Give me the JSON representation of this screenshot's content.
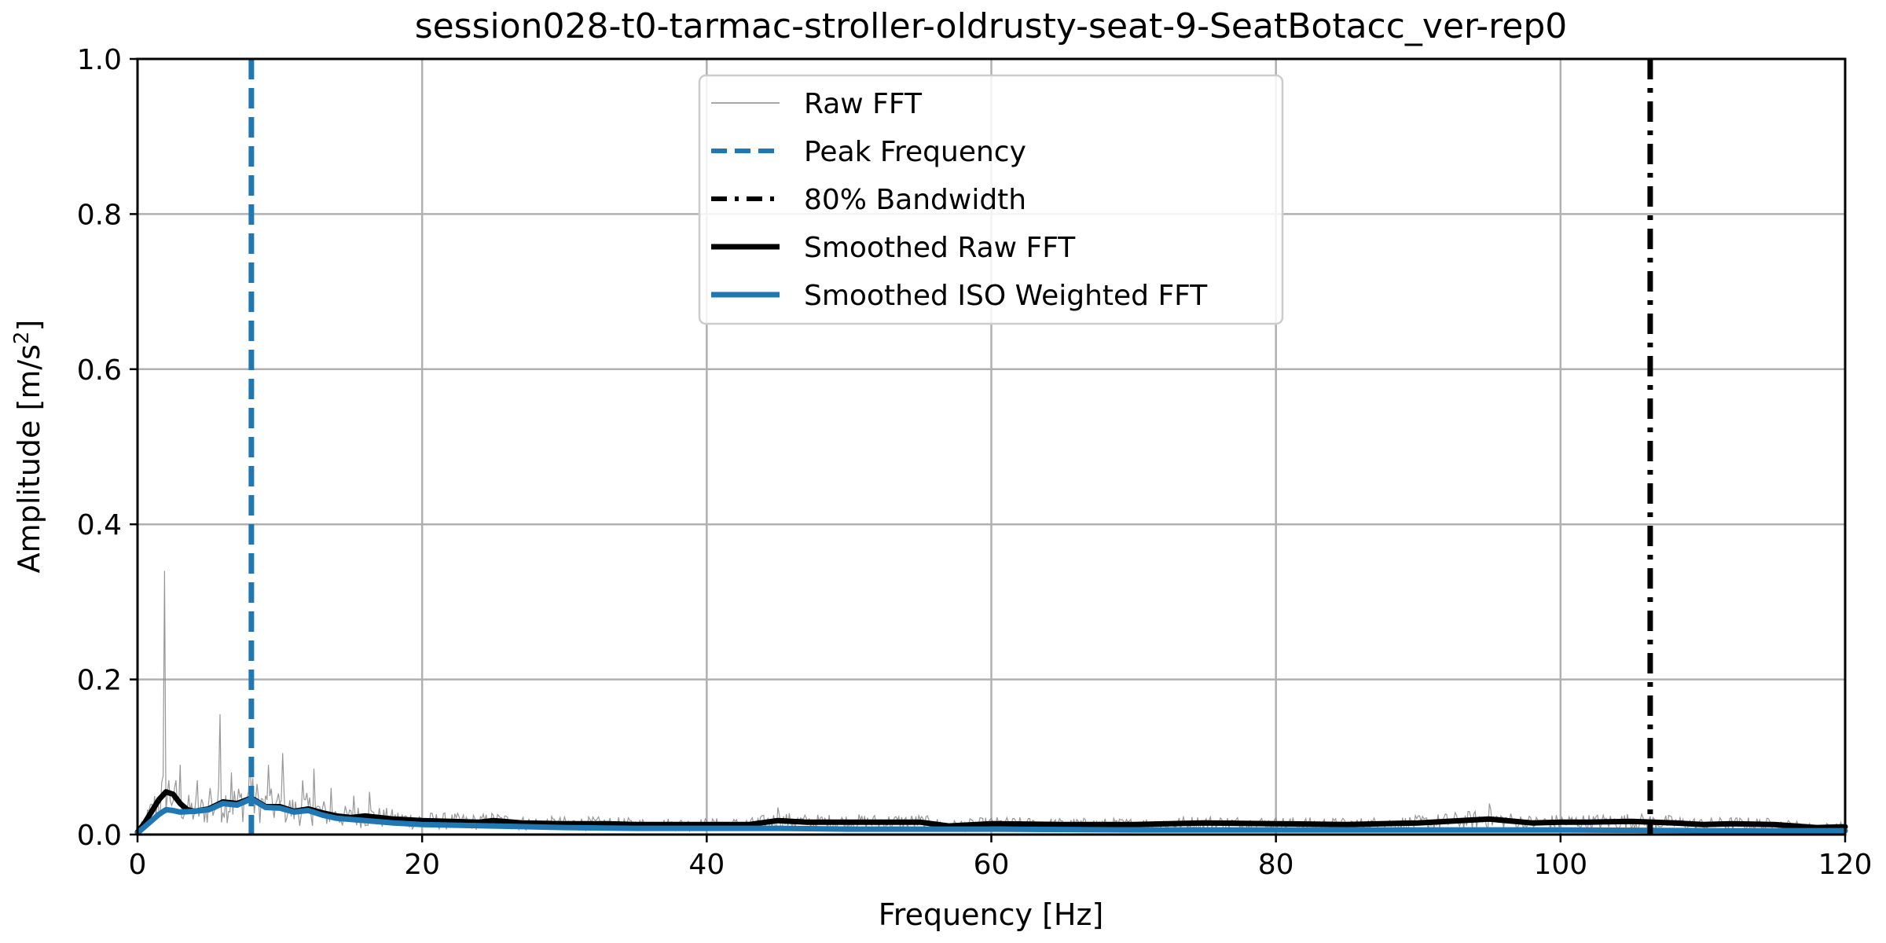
{
  "chart_data": {
    "type": "line",
    "title": "session028-t0-tarmac-stroller-oldrusty-seat-9-SeatBotacc_ver-rep0",
    "xlabel": "Frequency [Hz]",
    "ylabel_main": "Amplitude [m/s",
    "ylabel_sup": "2",
    "ylabel_end": "]",
    "xlim": [
      0,
      120
    ],
    "ylim": [
      0,
      1.0
    ],
    "x_ticks": [
      0,
      20,
      40,
      60,
      80,
      100,
      120
    ],
    "x_tick_labels": [
      "0",
      "20",
      "40",
      "60",
      "80",
      "100",
      "120"
    ],
    "y_ticks": [
      0,
      0.2,
      0.4,
      0.6,
      0.8,
      1.0
    ],
    "y_tick_labels": [
      "0.0",
      "0.2",
      "0.4",
      "0.6",
      "0.8",
      "1.0"
    ],
    "grid": true,
    "legend_position": "top-center",
    "peak_frequency": 8.0,
    "bandwidth_80": 106.3,
    "raw_spikes": [
      {
        "x": 1.9,
        "y": 0.34
      },
      {
        "x": 2.6,
        "y": 0.06
      },
      {
        "x": 3.0,
        "y": 0.09
      },
      {
        "x": 4.2,
        "y": 0.07
      },
      {
        "x": 5.1,
        "y": 0.06
      },
      {
        "x": 5.8,
        "y": 0.155
      },
      {
        "x": 6.6,
        "y": 0.08
      },
      {
        "x": 7.9,
        "y": 0.1
      },
      {
        "x": 9.2,
        "y": 0.09
      },
      {
        "x": 10.2,
        "y": 0.105
      },
      {
        "x": 11.6,
        "y": 0.07
      },
      {
        "x": 12.4,
        "y": 0.085
      },
      {
        "x": 13.6,
        "y": 0.06
      },
      {
        "x": 15.2,
        "y": 0.05
      },
      {
        "x": 16.3,
        "y": 0.055
      },
      {
        "x": 45.0,
        "y": 0.035
      },
      {
        "x": 95.0,
        "y": 0.04
      }
    ],
    "series": [
      {
        "name": "Smoothed Raw FFT",
        "x": [
          0,
          0.5,
          1.0,
          1.5,
          2.0,
          2.5,
          3.0,
          3.5,
          4.0,
          5.0,
          6.0,
          7.0,
          8.0,
          9.0,
          10.0,
          11.0,
          12.0,
          13.0,
          14.0,
          15.0,
          16.0,
          17.0,
          18.0,
          20.0,
          22.0,
          24.0,
          25.0,
          27.0,
          30.0,
          33.0,
          35.0,
          40.0,
          43.0,
          45.0,
          47.0,
          50.0,
          55.0,
          57.0,
          60.0,
          65.0,
          70.0,
          75.0,
          80.0,
          85.0,
          90.0,
          95.0,
          98.0,
          100.0,
          102.0,
          105.0,
          108.0,
          110.0,
          112.0,
          115.0,
          118.0,
          120.0
        ],
        "y": [
          0.003,
          0.015,
          0.03,
          0.045,
          0.055,
          0.052,
          0.04,
          0.032,
          0.03,
          0.033,
          0.042,
          0.04,
          0.047,
          0.036,
          0.036,
          0.03,
          0.033,
          0.028,
          0.024,
          0.022,
          0.024,
          0.022,
          0.02,
          0.018,
          0.017,
          0.016,
          0.018,
          0.015,
          0.014,
          0.014,
          0.013,
          0.013,
          0.013,
          0.018,
          0.016,
          0.016,
          0.016,
          0.011,
          0.014,
          0.013,
          0.013,
          0.015,
          0.014,
          0.013,
          0.015,
          0.02,
          0.015,
          0.016,
          0.016,
          0.017,
          0.015,
          0.013,
          0.014,
          0.013,
          0.009,
          0.01
        ]
      },
      {
        "name": "Smoothed ISO Weighted FFT",
        "x": [
          0,
          0.5,
          1.0,
          1.5,
          2.0,
          2.5,
          3.0,
          4.0,
          5.0,
          6.0,
          7.0,
          8.0,
          9.0,
          10.0,
          11.0,
          12.0,
          13.0,
          14.0,
          16.0,
          18.0,
          20.0,
          25.0,
          30.0,
          35.0,
          40.0,
          45.0,
          50.0,
          55.0,
          60.0,
          70.0,
          80.0,
          90.0,
          100.0,
          110.0,
          120.0
        ],
        "y": [
          0.002,
          0.01,
          0.018,
          0.026,
          0.032,
          0.031,
          0.029,
          0.03,
          0.032,
          0.04,
          0.038,
          0.046,
          0.035,
          0.034,
          0.029,
          0.031,
          0.025,
          0.021,
          0.018,
          0.015,
          0.013,
          0.011,
          0.009,
          0.008,
          0.008,
          0.008,
          0.007,
          0.007,
          0.007,
          0.006,
          0.006,
          0.006,
          0.006,
          0.005,
          0.005
        ]
      }
    ]
  },
  "legend": {
    "items": [
      {
        "label": "Raw FFT",
        "color": "#8c8c8c",
        "style": "thin-solid"
      },
      {
        "label": "Peak Frequency",
        "color": "#1f77b4",
        "style": "dashed"
      },
      {
        "label": "80% Bandwidth",
        "color": "#000000",
        "style": "dash-dot"
      },
      {
        "label": "Smoothed Raw FFT",
        "color": "#000000",
        "style": "thick-solid"
      },
      {
        "label": "Smoothed ISO Weighted FFT",
        "color": "#1f77b4",
        "style": "thick-solid"
      }
    ]
  },
  "colors": {
    "raw": "#8c8c8c",
    "peak": "#1f77b4",
    "bandwidth": "#000000",
    "smoothed_raw": "#000000",
    "smoothed_iso": "#1f77b4",
    "grid": "#b0b0b0"
  }
}
